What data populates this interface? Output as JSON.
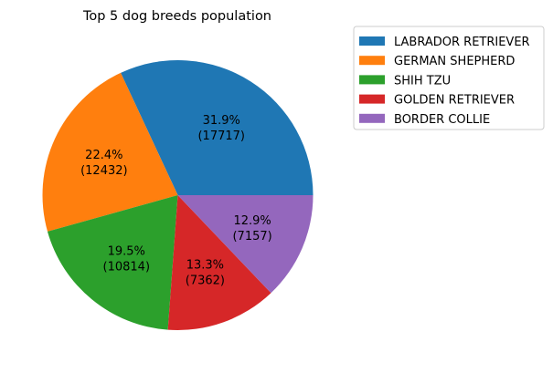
{
  "chart_data": {
    "type": "pie",
    "title": "Top 5 dog breeds population",
    "categories": [
      "LABRADOR RETRIEVER",
      "GERMAN SHEPHERD",
      "SHIH TZU",
      "GOLDEN RETRIEVER",
      "BORDER COLLIE"
    ],
    "values": [
      17717,
      12432,
      10814,
      7362,
      7157
    ],
    "percent_labels": [
      "31.9%",
      "22.4%",
      "19.5%",
      "13.3%",
      "12.9%"
    ],
    "value_labels": [
      "(17717)",
      "(12432)",
      "(10814)",
      "(7362)",
      "(7157)"
    ],
    "colors": [
      "#1f77b4",
      "#ff7f0e",
      "#2ca02c",
      "#d62728",
      "#9467bd"
    ],
    "start_angle_deg": 0,
    "direction": "counterclockwise",
    "legend_position": "upper-right-outside"
  }
}
